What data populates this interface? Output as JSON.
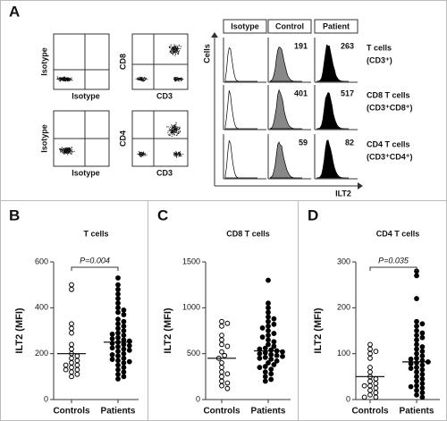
{
  "panel_a": {
    "label": "A",
    "dot_plots": [
      {
        "y_label": "Isotype",
        "x_label": "Isotype"
      },
      {
        "y_label": "CD8",
        "x_label": "CD3"
      },
      {
        "y_label": "Isotype",
        "x_label": "Isotype"
      },
      {
        "y_label": "CD4",
        "x_label": "CD3"
      }
    ],
    "histograms": {
      "columns": [
        "Isotype",
        "Control",
        "Patient"
      ],
      "y_label": "Cells",
      "x_label": "ILT2",
      "rows": [
        {
          "name": "T cells",
          "subset": "(CD3⁺)",
          "control": 191,
          "patient": 263
        },
        {
          "name": "CD8 T cells",
          "subset": "(CD3⁺CD8⁺)",
          "control": 401,
          "patient": 517
        },
        {
          "name": "CD4 T cells",
          "subset": "(CD3⁺CD4⁺)",
          "control": 59,
          "patient": 82
        }
      ]
    }
  },
  "chart_data": [
    {
      "type": "strip",
      "panel": "B",
      "title": "T cells",
      "y_label": "ILT2 (MFI)",
      "annotation": "P=0.004",
      "ylim": [
        0,
        600
      ],
      "yticks": [
        0,
        200,
        400,
        600
      ],
      "groups": [
        {
          "name": "Controls",
          "marker": "open",
          "mean": 200,
          "values": [
            500,
            480,
            330,
            310,
            290,
            240,
            220,
            200,
            190,
            180,
            170,
            160,
            150,
            150,
            140,
            130,
            130,
            120,
            110,
            100
          ]
        },
        {
          "name": "Patients",
          "marker": "filled",
          "mean": 250,
          "values": [
            530,
            500,
            480,
            460,
            440,
            420,
            400,
            390,
            380,
            370,
            350,
            340,
            330,
            320,
            310,
            300,
            290,
            285,
            280,
            270,
            265,
            260,
            255,
            250,
            245,
            240,
            235,
            230,
            225,
            220,
            215,
            210,
            200,
            195,
            190,
            180,
            175,
            170,
            165,
            160,
            150,
            140,
            130,
            120,
            110,
            100,
            90
          ]
        }
      ]
    },
    {
      "type": "strip",
      "panel": "C",
      "title": "CD8 T cells",
      "y_label": "ILT2 (MFI)",
      "ylim": [
        0,
        1500
      ],
      "yticks": [
        0,
        500,
        1000,
        1500
      ],
      "groups": [
        {
          "name": "Controls",
          "marker": "open",
          "mean": 450,
          "values": [
            850,
            830,
            800,
            700,
            650,
            600,
            580,
            520,
            480,
            450,
            400,
            350,
            300,
            280,
            250,
            200,
            180,
            150,
            120
          ]
        },
        {
          "name": "Patients",
          "marker": "filled",
          "mean": 530,
          "values": [
            1300,
            1050,
            1000,
            950,
            900,
            880,
            850,
            820,
            800,
            780,
            750,
            720,
            700,
            680,
            650,
            630,
            600,
            580,
            560,
            550,
            540,
            530,
            520,
            510,
            500,
            490,
            480,
            470,
            460,
            450,
            440,
            420,
            400,
            380,
            360,
            350,
            330,
            300,
            280,
            250,
            220,
            200
          ]
        }
      ]
    },
    {
      "type": "strip",
      "panel": "D",
      "title": "CD4 T cells",
      "y_label": "ILT2 (MFI)",
      "annotation": "P=0.035",
      "ylim": [
        0,
        300
      ],
      "yticks": [
        0,
        100,
        200,
        300
      ],
      "groups": [
        {
          "name": "Controls",
          "marker": "open",
          "mean": 50,
          "values": [
            120,
            110,
            105,
            100,
            90,
            70,
            60,
            50,
            45,
            40,
            35,
            30,
            30,
            25,
            20,
            15,
            10,
            5,
            5
          ]
        },
        {
          "name": "Patients",
          "marker": "filled",
          "mean": 82,
          "values": [
            280,
            270,
            220,
            170,
            165,
            160,
            150,
            145,
            140,
            135,
            130,
            120,
            115,
            110,
            105,
            100,
            95,
            90,
            88,
            85,
            82,
            80,
            78,
            75,
            70,
            68,
            65,
            60,
            55,
            50,
            45,
            40,
            35,
            30,
            28,
            25,
            20,
            15,
            10,
            5
          ]
        }
      ]
    }
  ]
}
